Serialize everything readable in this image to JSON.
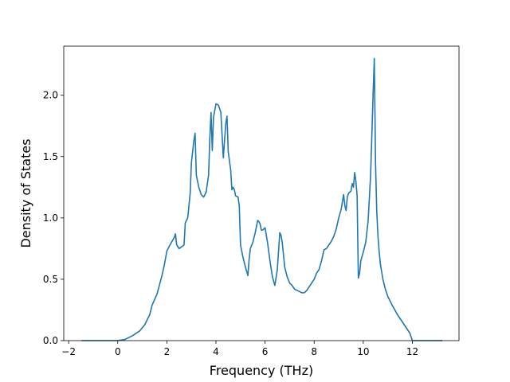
{
  "chart_data": {
    "type": "line",
    "title": "",
    "xlabel": "Frequency (THz)",
    "ylabel": "Density of States",
    "xlim": [
      -2.2,
      13.9
    ],
    "ylim": [
      0.0,
      2.4
    ],
    "grid": false,
    "legend": "none",
    "line_color": "#1f77b4",
    "xticks": [
      {
        "value": -2,
        "label": "−2"
      },
      {
        "value": 0,
        "label": "0"
      },
      {
        "value": 2,
        "label": "2"
      },
      {
        "value": 4,
        "label": "4"
      },
      {
        "value": 6,
        "label": "6"
      },
      {
        "value": 8,
        "label": "8"
      },
      {
        "value": 10,
        "label": "10"
      },
      {
        "value": 12,
        "label": "12"
      }
    ],
    "yticks": [
      {
        "value": 0.0,
        "label": "0.0"
      },
      {
        "value": 0.5,
        "label": "0.5"
      },
      {
        "value": 1.0,
        "label": "1.0"
      },
      {
        "value": 1.5,
        "label": "1.5"
      },
      {
        "value": 2.0,
        "label": "2.0"
      }
    ],
    "series": [
      {
        "x": [
          -1.45,
          -0.5,
          0.0,
          0.3,
          0.6,
          0.9,
          1.1,
          1.3,
          1.4,
          1.6,
          1.8,
          1.9,
          2.0,
          2.1,
          2.3,
          2.35,
          2.4,
          2.5,
          2.7,
          2.75,
          2.85,
          2.95,
          3.0,
          3.1,
          3.15,
          3.2,
          3.3,
          3.4,
          3.5,
          3.6,
          3.7,
          3.75,
          3.8,
          3.85,
          3.9,
          4.0,
          4.1,
          4.2,
          4.3,
          4.4,
          4.45,
          4.5,
          4.6,
          4.65,
          4.7,
          4.75,
          4.8,
          4.9,
          4.95,
          5.0,
          5.1,
          5.2,
          5.3,
          5.35,
          5.4,
          5.5,
          5.6,
          5.7,
          5.75,
          5.8,
          5.85,
          5.9,
          6.0,
          6.1,
          6.2,
          6.3,
          6.4,
          6.5,
          6.6,
          6.65,
          6.7,
          6.8,
          6.9,
          7.0,
          7.1,
          7.2,
          7.3,
          7.4,
          7.5,
          7.6,
          7.7,
          7.8,
          7.9,
          8.0,
          8.1,
          8.2,
          8.3,
          8.4,
          8.5,
          8.6,
          8.7,
          8.8,
          8.9,
          9.0,
          9.1,
          9.2,
          9.25,
          9.3,
          9.35,
          9.4,
          9.5,
          9.55,
          9.6,
          9.65,
          9.7,
          9.75,
          9.8,
          9.85,
          9.9,
          10.0,
          10.1,
          10.2,
          10.3,
          10.4,
          10.45,
          10.5,
          10.55,
          10.6,
          10.65,
          10.7,
          10.8,
          10.9,
          11.0,
          11.2,
          11.4,
          11.6,
          11.7,
          11.8,
          11.9,
          12.0,
          12.1,
          12.5,
          13.2
        ],
        "y": [
          0.0,
          0.0,
          0.0,
          0.01,
          0.04,
          0.08,
          0.13,
          0.21,
          0.29,
          0.38,
          0.53,
          0.62,
          0.73,
          0.77,
          0.84,
          0.87,
          0.78,
          0.75,
          0.78,
          0.96,
          1.0,
          1.2,
          1.45,
          1.63,
          1.69,
          1.35,
          1.25,
          1.19,
          1.17,
          1.21,
          1.35,
          1.65,
          1.86,
          1.55,
          1.82,
          1.93,
          1.92,
          1.86,
          1.49,
          1.77,
          1.83,
          1.54,
          1.39,
          1.23,
          1.25,
          1.23,
          1.18,
          1.17,
          1.1,
          0.78,
          0.68,
          0.6,
          0.53,
          0.66,
          0.75,
          0.8,
          0.88,
          0.98,
          0.97,
          0.95,
          0.9,
          0.9,
          0.92,
          0.8,
          0.65,
          0.52,
          0.45,
          0.58,
          0.88,
          0.86,
          0.8,
          0.6,
          0.52,
          0.47,
          0.45,
          0.42,
          0.41,
          0.4,
          0.39,
          0.39,
          0.41,
          0.44,
          0.47,
          0.5,
          0.55,
          0.58,
          0.65,
          0.74,
          0.75,
          0.78,
          0.81,
          0.85,
          0.91,
          1.0,
          1.07,
          1.19,
          1.1,
          1.06,
          1.17,
          1.2,
          1.22,
          1.28,
          1.25,
          1.37,
          1.3,
          1.18,
          0.51,
          0.55,
          0.65,
          0.72,
          0.8,
          0.98,
          1.35,
          2.0,
          2.3,
          1.45,
          1.05,
          0.85,
          0.72,
          0.62,
          0.5,
          0.42,
          0.36,
          0.28,
          0.21,
          0.15,
          0.12,
          0.09,
          0.06,
          0.0,
          0.0,
          0.0,
          0.0
        ]
      }
    ]
  }
}
